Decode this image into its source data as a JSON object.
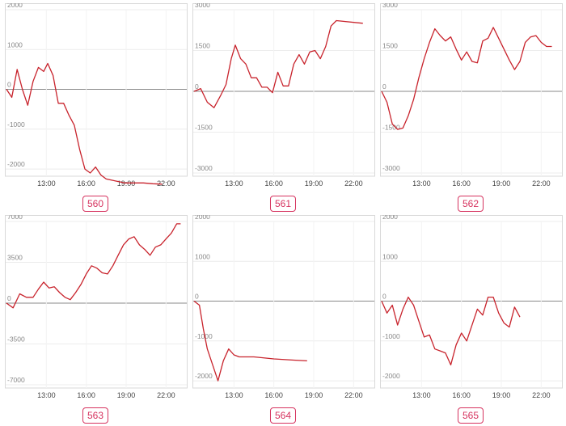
{
  "chart_data": [
    {
      "type": "line",
      "badge": "560",
      "ylim": [
        -2100,
        2000
      ],
      "yticks": [
        "2000",
        "1000",
        "0",
        "-1000",
        "-2000"
      ],
      "ytick_values": [
        2000,
        1000,
        0,
        -1000,
        -2000
      ],
      "xticks": [
        "13:00",
        "16:00",
        "19:00",
        "22:00"
      ],
      "xtick_values": [
        13,
        16,
        19,
        22
      ],
      "xlim": [
        10,
        23.5
      ],
      "line_color": "#c8232c",
      "x": [
        10.0,
        10.4,
        10.8,
        11.2,
        11.6,
        12.0,
        12.4,
        12.8,
        13.1,
        13.5,
        13.9,
        14.3,
        14.7,
        15.1,
        15.5,
        15.9,
        16.3,
        16.7,
        17.1,
        17.5,
        18.2,
        18.9,
        19.6,
        20.3,
        21.0,
        21.7
      ],
      "y": [
        0,
        -200,
        500,
        0,
        -400,
        200,
        550,
        450,
        650,
        350,
        -350,
        -350,
        -650,
        -900,
        -1500,
        -2000,
        -2100,
        -1950,
        -2150,
        -2250,
        -2300,
        -2350,
        -2350,
        -2350,
        -2370,
        -2380
      ]
    },
    {
      "type": "line",
      "badge": "561",
      "ylim": [
        -3000,
        3000
      ],
      "yticks": [
        "3000",
        "1500",
        "0",
        "-1500",
        "-3000"
      ],
      "ytick_values": [
        3000,
        1500,
        0,
        -1500,
        -3000
      ],
      "xticks": [
        "13:00",
        "16:00",
        "19:00",
        "22:00"
      ],
      "xtick_values": [
        13,
        16,
        19,
        22
      ],
      "xlim": [
        10,
        23.5
      ],
      "line_color": "#c8232c",
      "x": [
        10.0,
        10.5,
        11.0,
        11.5,
        12.0,
        12.4,
        12.8,
        13.1,
        13.5,
        13.9,
        14.3,
        14.7,
        15.1,
        15.5,
        15.9,
        16.3,
        16.7,
        17.1,
        17.5,
        17.9,
        18.3,
        18.7,
        19.1,
        19.5,
        19.9,
        20.3,
        20.7,
        22.7
      ],
      "y": [
        0,
        100,
        -400,
        -600,
        -150,
        250,
        1200,
        1700,
        1200,
        1000,
        500,
        500,
        150,
        150,
        -50,
        700,
        200,
        200,
        1000,
        1350,
        1000,
        1450,
        1500,
        1200,
        1650,
        2400,
        2600,
        2500
      ]
    },
    {
      "type": "line",
      "badge": "562",
      "ylim": [
        -3000,
        3000
      ],
      "yticks": [
        "3000",
        "1500",
        "0",
        "-1500",
        "-3000"
      ],
      "ytick_values": [
        3000,
        1500,
        0,
        -1500,
        -3000
      ],
      "xticks": [
        "13:00",
        "16:00",
        "19:00",
        "22:00"
      ],
      "xtick_values": [
        13,
        16,
        19,
        22
      ],
      "xlim": [
        10,
        23.5
      ],
      "line_color": "#c8232c",
      "x": [
        10.0,
        10.4,
        10.8,
        11.2,
        11.6,
        12.0,
        12.4,
        12.8,
        13.2,
        13.6,
        14.0,
        14.4,
        14.8,
        15.2,
        15.6,
        16.0,
        16.4,
        16.8,
        17.2,
        17.6,
        18.0,
        18.4,
        18.8,
        19.2,
        19.6,
        20.0,
        20.4,
        20.8,
        21.2,
        21.6,
        22.0,
        22.4,
        22.8
      ],
      "y": [
        0,
        -400,
        -1200,
        -1400,
        -1350,
        -900,
        -300,
        500,
        1200,
        1800,
        2300,
        2050,
        1850,
        2000,
        1550,
        1150,
        1450,
        1100,
        1050,
        1850,
        1950,
        2350,
        1950,
        1550,
        1150,
        800,
        1100,
        1800,
        2000,
        2050,
        1800,
        1650,
        1650
      ]
    },
    {
      "type": "line",
      "badge": "563",
      "ylim": [
        -7000,
        7000
      ],
      "yticks": [
        "7000",
        "3500",
        "0",
        "-3500",
        "-7000"
      ],
      "ytick_values": [
        7000,
        3500,
        0,
        -3500,
        -7000
      ],
      "xticks": [
        "13:00",
        "16:00",
        "19:00",
        "22:00"
      ],
      "xtick_values": [
        13,
        16,
        19,
        22
      ],
      "xlim": [
        10,
        23.5
      ],
      "line_color": "#c8232c",
      "x": [
        10.0,
        10.5,
        11.0,
        11.5,
        12.0,
        12.4,
        12.8,
        13.2,
        13.6,
        14.0,
        14.4,
        14.8,
        15.2,
        15.6,
        16.0,
        16.4,
        16.8,
        17.2,
        17.6,
        18.0,
        18.4,
        18.8,
        19.2,
        19.6,
        20.0,
        20.4,
        20.8,
        21.2,
        21.6,
        22.0,
        22.4,
        22.8,
        23.1
      ],
      "y": [
        0,
        -400,
        800,
        500,
        500,
        1200,
        1800,
        1300,
        1400,
        900,
        500,
        300,
        900,
        1600,
        2500,
        3200,
        3000,
        2600,
        2500,
        3200,
        4100,
        5000,
        5500,
        5700,
        5000,
        4600,
        4100,
        4800,
        5000,
        5500,
        6000,
        6800,
        6800
      ]
    },
    {
      "type": "line",
      "badge": "564",
      "ylim": [
        -2100,
        2000
      ],
      "yticks": [
        "2000",
        "1000",
        "0",
        "-1000",
        "-2000"
      ],
      "ytick_values": [
        2000,
        1000,
        0,
        -1000,
        -2000
      ],
      "xticks": [
        "13:00",
        "16:00",
        "19:00",
        "22:00"
      ],
      "xtick_values": [
        13,
        16,
        19,
        22
      ],
      "xlim": [
        10,
        23.5
      ],
      "line_color": "#c8232c",
      "x": [
        10.0,
        10.4,
        10.7,
        11.0,
        11.4,
        11.8,
        12.2,
        12.6,
        13.0,
        13.4,
        14.5,
        16.0,
        17.5,
        18.5
      ],
      "y": [
        0,
        -100,
        -700,
        -1200,
        -1600,
        -2000,
        -1500,
        -1200,
        -1350,
        -1400,
        -1400,
        -1450,
        -1480,
        -1500
      ]
    },
    {
      "type": "line",
      "badge": "565",
      "ylim": [
        -2100,
        2000
      ],
      "yticks": [
        "2000",
        "1000",
        "0",
        "-1000",
        "-2000"
      ],
      "ytick_values": [
        2000,
        1000,
        0,
        -1000,
        -2000
      ],
      "xticks": [
        "13:00",
        "16:00",
        "19:00",
        "22:00"
      ],
      "xtick_values": [
        13,
        16,
        19,
        22
      ],
      "xlim": [
        10,
        23.5
      ],
      "line_color": "#c8232c",
      "x": [
        10.0,
        10.4,
        10.8,
        11.2,
        11.6,
        12.0,
        12.4,
        12.8,
        13.2,
        13.6,
        14.0,
        14.4,
        14.8,
        15.2,
        15.6,
        16.0,
        16.4,
        16.8,
        17.2,
        17.6,
        18.0,
        18.4,
        18.8,
        19.2,
        19.6,
        20.0,
        20.4
      ],
      "y": [
        0,
        -300,
        -100,
        -600,
        -200,
        100,
        -100,
        -500,
        -900,
        -850,
        -1200,
        -1250,
        -1300,
        -1600,
        -1100,
        -800,
        -1000,
        -600,
        -200,
        -350,
        100,
        100,
        -300,
        -550,
        -650,
        -150,
        -400
      ]
    }
  ]
}
